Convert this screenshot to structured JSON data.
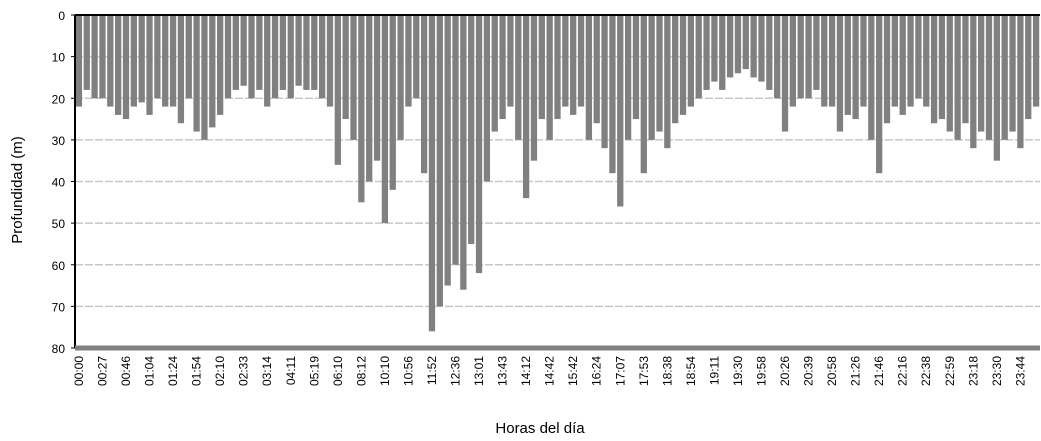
{
  "chart_data": {
    "type": "bar",
    "y_label": "Profundidad (m)",
    "x_label": "Horas del día",
    "color": "#808080",
    "inverted_y": true,
    "grid": true,
    "ylim": [
      0,
      80
    ],
    "yticks": [
      0,
      10,
      20,
      30,
      40,
      50,
      60,
      70,
      80
    ],
    "categories": [
      "00:00",
      null,
      null,
      "00:27",
      null,
      null,
      "00:46",
      null,
      null,
      "01:04",
      null,
      null,
      "01:24",
      null,
      null,
      "01:54",
      null,
      null,
      "02:10",
      null,
      null,
      "02:33",
      null,
      null,
      "03:14",
      null,
      null,
      "04:11",
      null,
      null,
      "05:19",
      null,
      null,
      "06:10",
      null,
      null,
      "08:12",
      null,
      null,
      "10:10",
      null,
      null,
      "10:56",
      null,
      null,
      "11:52",
      null,
      null,
      "12:36",
      null,
      null,
      "13:01",
      null,
      null,
      "13:43",
      null,
      null,
      "14:12",
      null,
      null,
      "14:42",
      null,
      null,
      "15:42",
      null,
      null,
      "16:24",
      null,
      null,
      "17:07",
      null,
      null,
      "17:53",
      null,
      null,
      "18:38",
      null,
      null,
      "18:54",
      null,
      null,
      "19:11",
      null,
      null,
      "19:30",
      null,
      null,
      "19:58",
      null,
      null,
      "20:26",
      null,
      null,
      "20:39",
      null,
      null,
      "20:58",
      null,
      null,
      "21:26",
      null,
      null,
      "21:46",
      null,
      null,
      "22:16",
      null,
      null,
      "22:38",
      null,
      null,
      "22:59",
      null,
      null,
      "23:18",
      null,
      null,
      "23:30",
      null,
      null,
      "23:44",
      null,
      null
    ],
    "values": [
      22,
      18,
      20,
      20,
      22,
      24,
      25,
      22,
      21,
      24,
      20,
      22,
      22,
      26,
      20,
      28,
      30,
      27,
      24,
      20,
      18,
      17,
      20,
      18,
      22,
      20,
      18,
      20,
      17,
      18,
      18,
      20,
      22,
      36,
      25,
      30,
      45,
      40,
      35,
      50,
      42,
      30,
      22,
      20,
      38,
      76,
      70,
      65,
      60,
      66,
      55,
      62,
      40,
      28,
      25,
      22,
      30,
      44,
      35,
      25,
      30,
      25,
      22,
      24,
      22,
      30,
      26,
      32,
      38,
      46,
      30,
      25,
      38,
      30,
      28,
      32,
      26,
      24,
      22,
      20,
      18,
      16,
      18,
      15,
      14,
      13,
      15,
      16,
      18,
      20,
      28,
      22,
      20,
      20,
      18,
      22,
      22,
      28,
      24,
      25,
      22,
      30,
      38,
      26,
      22,
      24,
      22,
      20,
      22,
      26,
      25,
      28,
      30,
      26,
      32,
      28,
      30,
      35,
      30,
      28,
      32,
      25,
      22
    ]
  }
}
